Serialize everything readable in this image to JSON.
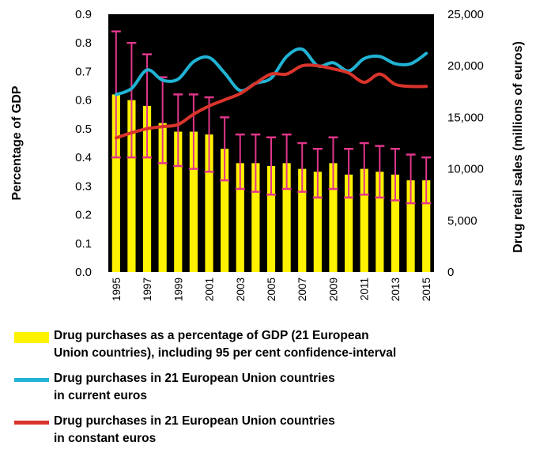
{
  "chart_data": {
    "type": "bar+line",
    "categories": [
      "1995",
      "1996",
      "1997",
      "1998",
      "1999",
      "2000",
      "2001",
      "2002",
      "2003",
      "2004",
      "2005",
      "2006",
      "2007",
      "2008",
      "2009",
      "2010",
      "2011",
      "2012",
      "2013",
      "2014",
      "2015"
    ],
    "x_tick_labels": [
      "1995",
      "1997",
      "1999",
      "2001",
      "2003",
      "2005",
      "2007",
      "2009",
      "2011",
      "2013",
      "2015"
    ],
    "bar_series": {
      "name": "Drug purchases as a percentage of GDP (21 European Union countries), including 95 per cent confidence-interval",
      "axis": "left",
      "color": "#FFF200",
      "values": [
        0.62,
        0.6,
        0.58,
        0.52,
        0.49,
        0.49,
        0.48,
        0.43,
        0.38,
        0.38,
        0.37,
        0.38,
        0.36,
        0.35,
        0.38,
        0.34,
        0.36,
        0.35,
        0.34,
        0.32,
        0.32
      ],
      "ci_low": [
        0.4,
        0.4,
        0.4,
        0.38,
        0.37,
        0.36,
        0.35,
        0.32,
        0.29,
        0.28,
        0.27,
        0.29,
        0.28,
        0.26,
        0.29,
        0.26,
        0.27,
        0.26,
        0.25,
        0.24,
        0.24
      ],
      "ci_high": [
        0.84,
        0.8,
        0.76,
        0.68,
        0.62,
        0.62,
        0.61,
        0.54,
        0.48,
        0.48,
        0.47,
        0.48,
        0.45,
        0.43,
        0.47,
        0.43,
        0.45,
        0.44,
        0.43,
        0.41,
        0.4
      ],
      "errorbar_color": "#E0368A"
    },
    "line_series": [
      {
        "name": "Drug purchases in 21 European Union countries in current euros",
        "axis": "right",
        "color": "#21B3D4",
        "values": [
          17200,
          17800,
          19600,
          18600,
          18700,
          20400,
          20800,
          19300,
          17600,
          18300,
          18800,
          20900,
          21600,
          20000,
          20300,
          19500,
          20700,
          20900,
          20200,
          20200,
          21200
        ]
      },
      {
        "name": "Drug purchases in 21 European Union countries in constant euros",
        "axis": "right",
        "color": "#D9342B",
        "values": [
          13000,
          13500,
          13900,
          14100,
          14300,
          15300,
          16100,
          16700,
          17300,
          18300,
          19200,
          19200,
          20000,
          20000,
          19700,
          19300,
          18400,
          19200,
          18200,
          18000,
          18000
        ]
      }
    ],
    "y_left": {
      "label": "Percentage of GDP",
      "ylim": [
        0,
        0.9
      ],
      "ticks": [
        "0.0",
        "0.1",
        "0.2",
        "0.3",
        "0.4",
        "0.5",
        "0.6",
        "0.7",
        "0.8",
        "0.9"
      ]
    },
    "y_right": {
      "label": "Drug retail sales (millions of euros)",
      "ylim": [
        0,
        25000
      ],
      "ticks": [
        "0",
        "5,000",
        "10,000",
        "15,000",
        "20,000",
        "25,000"
      ]
    },
    "plot_background": "#000000",
    "grid": false,
    "legend_position": "bottom"
  },
  "legend": [
    {
      "text": "Drug purchases as a percentage of GDP (21 European\nUnion countries), including 95 per cent confidence-interval",
      "color": "#FFF200",
      "kind": "bar"
    },
    {
      "text": "Drug purchases in 21 European Union countries\nin current euros",
      "color": "#21B3D4",
      "kind": "line"
    },
    {
      "text": "Drug purchases in 21 European Union countries\nin constant euros",
      "color": "#D9342B",
      "kind": "line"
    }
  ]
}
